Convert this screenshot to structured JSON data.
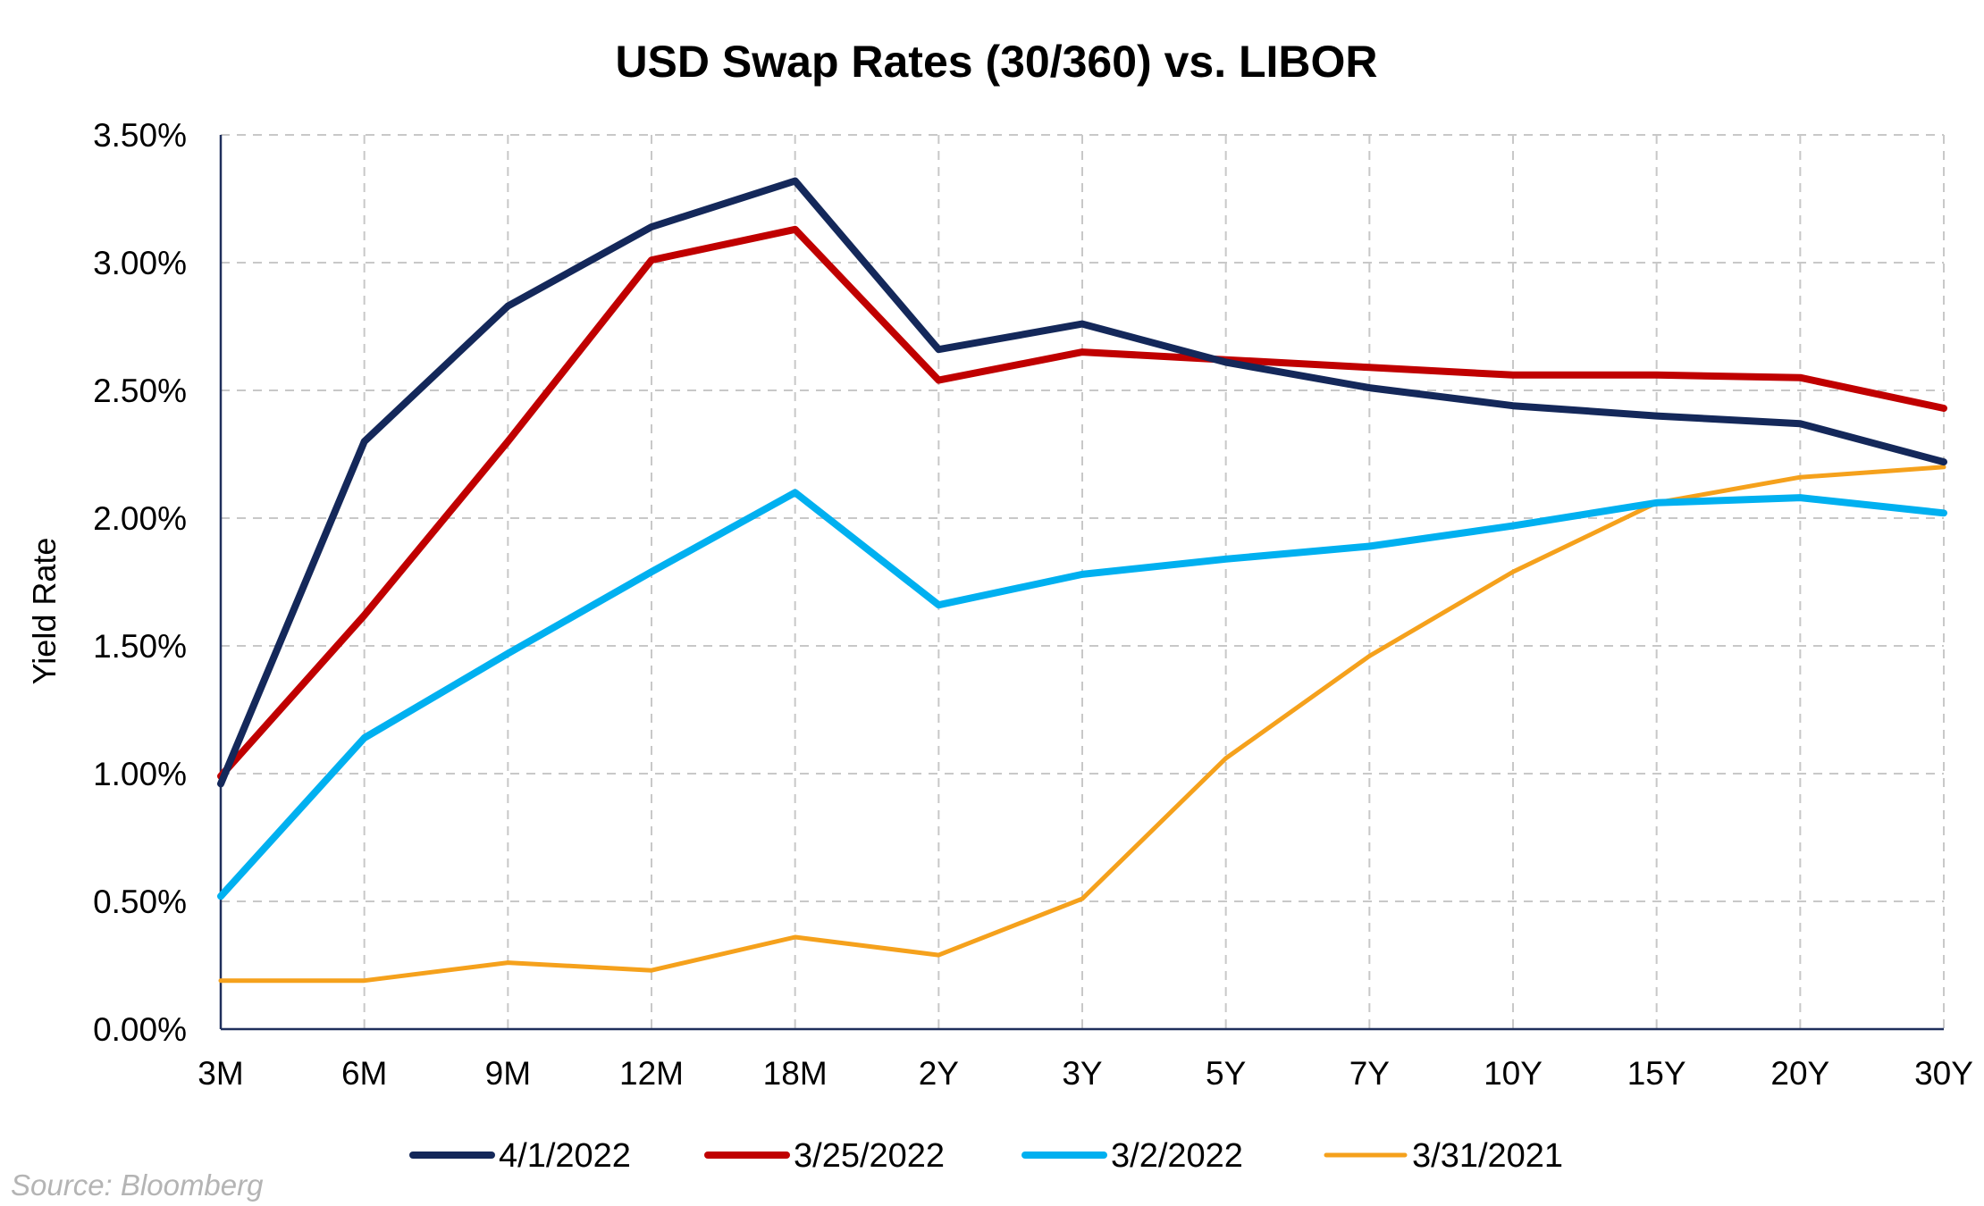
{
  "chart_data": {
    "type": "line",
    "title": "USD Swap Rates (30/360) vs. LIBOR",
    "xlabel": "",
    "ylabel": "Yield Rate",
    "categories": [
      "3M",
      "6M",
      "9M",
      "12M",
      "18M",
      "2Y",
      "3Y",
      "5Y",
      "7Y",
      "10Y",
      "15Y",
      "20Y",
      "30Y"
    ],
    "ylim": [
      0,
      3.5
    ],
    "y_ticks": [
      0,
      0.5,
      1.0,
      1.5,
      2.0,
      2.5,
      3.0,
      3.5
    ],
    "y_tick_labels": [
      "0.00%",
      "0.50%",
      "1.00%",
      "1.50%",
      "2.00%",
      "2.50%",
      "3.00%",
      "3.50%"
    ],
    "grid": true,
    "legend_position": "bottom",
    "series": [
      {
        "name": "4/1/2022",
        "color": "#14285a",
        "values": [
          0.96,
          2.3,
          2.83,
          3.14,
          3.32,
          2.66,
          2.76,
          2.61,
          2.51,
          2.44,
          2.4,
          2.37,
          2.22
        ]
      },
      {
        "name": "3/25/2022",
        "color": "#c00000",
        "values": [
          0.99,
          1.62,
          2.3,
          3.01,
          3.13,
          2.54,
          2.65,
          2.62,
          2.59,
          2.56,
          2.56,
          2.55,
          2.43
        ]
      },
      {
        "name": "3/2/2022",
        "color": "#00b0f0",
        "values": [
          0.52,
          1.14,
          1.47,
          1.79,
          2.1,
          1.66,
          1.78,
          1.84,
          1.89,
          1.97,
          2.06,
          2.08,
          2.02
        ]
      },
      {
        "name": "3/31/2021",
        "color": "#f5a11c",
        "values": [
          0.19,
          0.19,
          0.26,
          0.23,
          0.36,
          0.29,
          0.51,
          1.06,
          1.46,
          1.79,
          2.06,
          2.16,
          2.2
        ]
      }
    ]
  },
  "source_note": "Source: Bloomberg"
}
